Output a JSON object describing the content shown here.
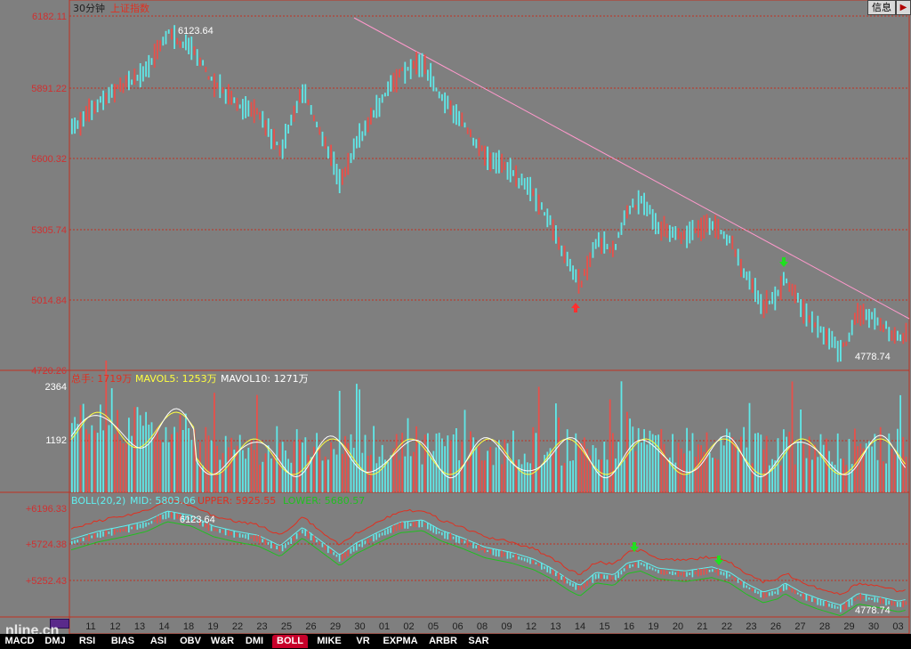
{
  "header": {
    "period": "30分钟",
    "index_name": "上证指数",
    "info_button": "信息",
    "exit_icon": "exit-icon"
  },
  "price_panel": {
    "y_ticks": [
      "6182.11",
      "5891.22",
      "5600.32",
      "5305.74",
      "5014.84",
      "4720.26"
    ],
    "high_marker": "6123.64",
    "low_marker": "4778.74"
  },
  "volume_panel": {
    "total_label": "总手: 1719万",
    "mavol5_label": "MAVOL5: 1253万",
    "mavol10_label": "MAVOL10: 1271万",
    "y_ticks": [
      "2364",
      "1192"
    ]
  },
  "boll_panel": {
    "boll_label": "BOLL(20,2)",
    "mid_label": "MID: 5803.06",
    "upper_label": "UPPER: 5925.55",
    "lower_label": "LOWER: 5680.57",
    "y_ticks": [
      "+6196.33",
      "+5724.38",
      "+5252.43"
    ],
    "high_marker": "6123.64",
    "low_marker": "4778.74"
  },
  "x_axis": [
    "11",
    "12",
    "13",
    "14",
    "18",
    "19",
    "22",
    "23",
    "25",
    "26",
    "29",
    "30",
    "01",
    "02",
    "05",
    "06",
    "08",
    "09",
    "12",
    "13",
    "14",
    "15",
    "16",
    "19",
    "20",
    "21",
    "22",
    "23",
    "26",
    "27",
    "28",
    "29",
    "30",
    "03"
  ],
  "tabs": [
    "MACD",
    "DMJ",
    "RSI",
    "BIAS",
    "ASI",
    "OBV",
    "W&R",
    "DMI",
    "BOLL",
    "MIKE",
    "VR",
    "EXPMA",
    "ARBR",
    "SAR"
  ],
  "active_tab": "BOLL",
  "watermark": "nline.cn",
  "colors": {
    "background": "#7f7f7f",
    "grid": "#c03020",
    "up_candle": "#e8504a",
    "down_candle": "#5fe8e8",
    "trendline": "#ff99cc",
    "mavol5": "#ffff40",
    "mavol10": "#ffffff",
    "boll_mid": "#60f0f0",
    "boll_upper": "#e03020",
    "boll_lower": "#20c020"
  }
}
